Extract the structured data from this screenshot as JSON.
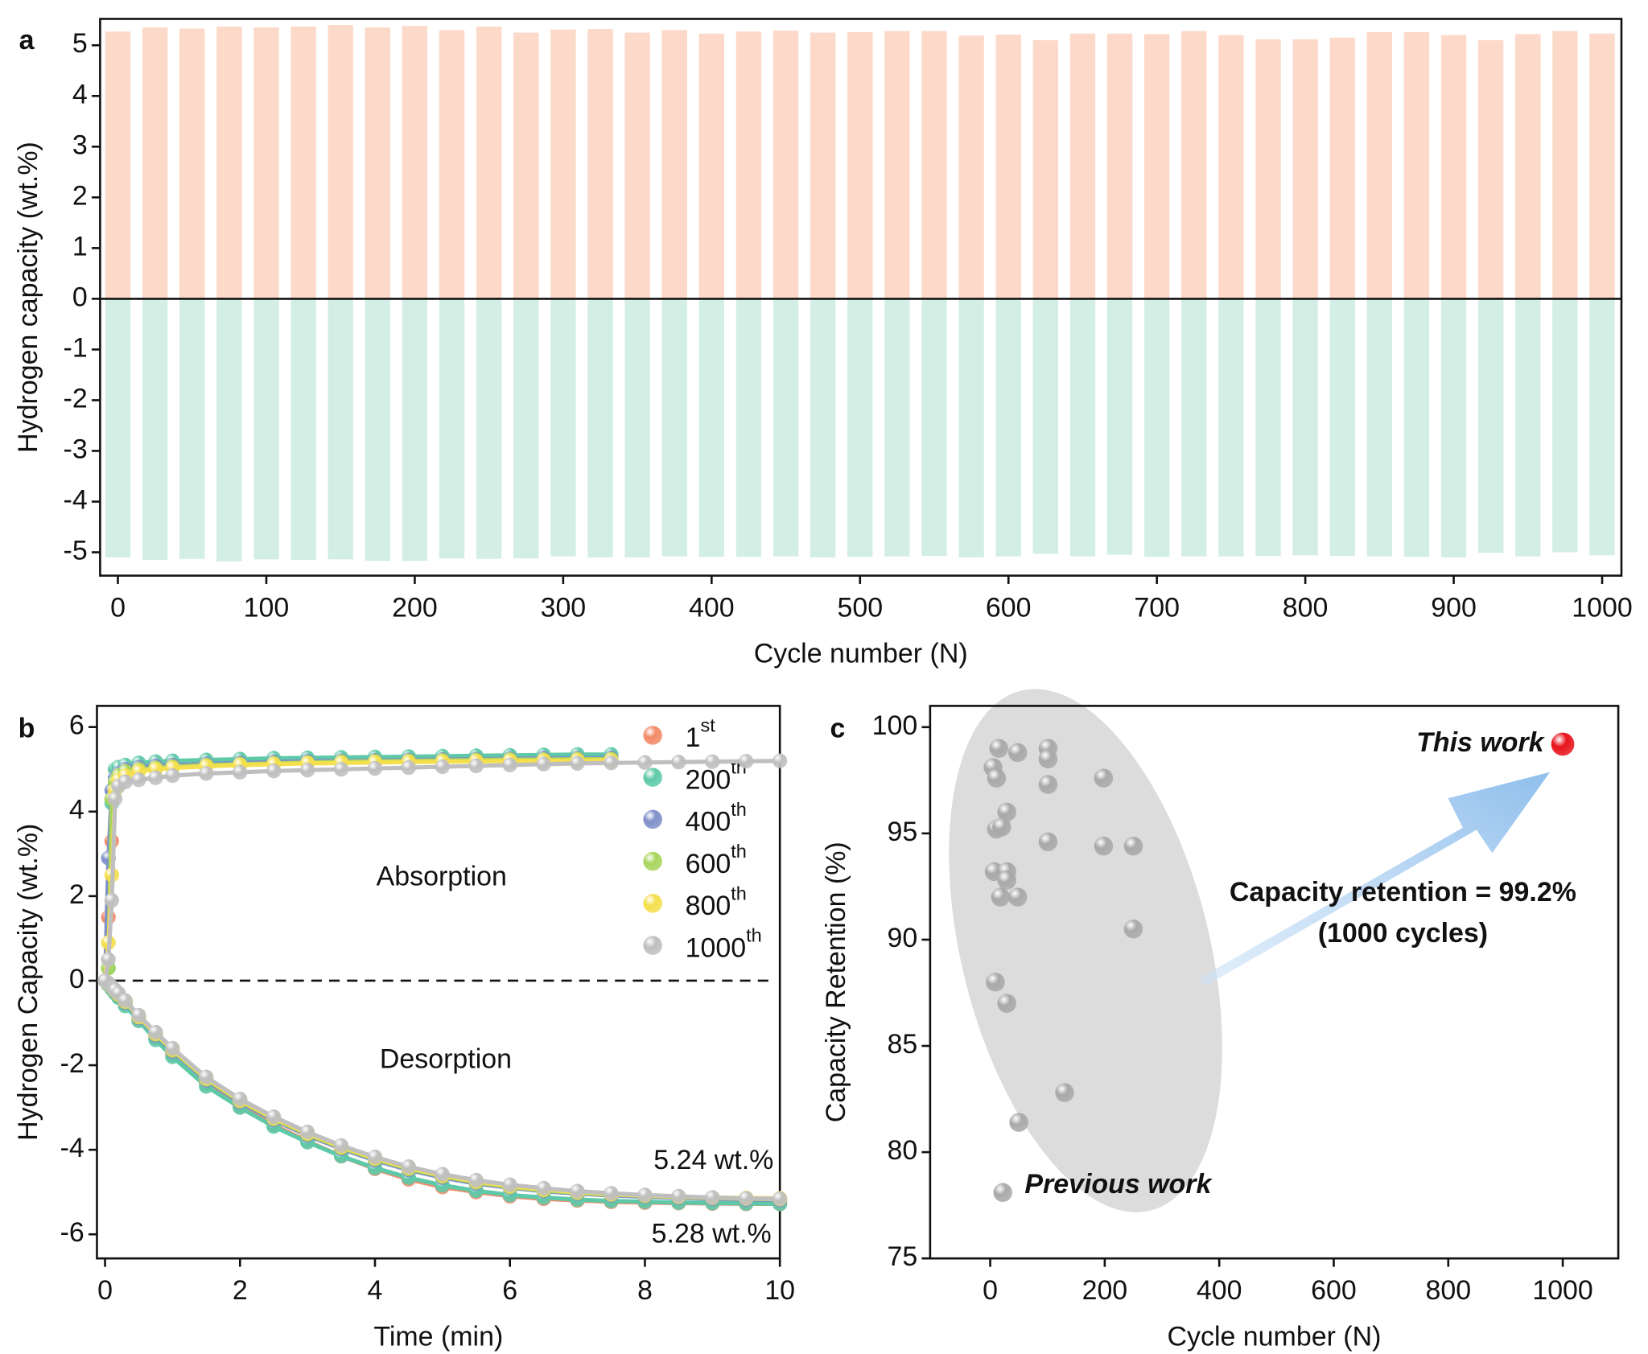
{
  "chart_data": [
    {
      "type": "bar",
      "panel": "a",
      "xlabel": "Cycle number (N)",
      "ylabel": "Hydrogen capacity (wt.%)",
      "x": [
        0,
        25,
        50,
        75,
        100,
        125,
        150,
        175,
        200,
        225,
        250,
        275,
        300,
        325,
        350,
        375,
        400,
        425,
        450,
        475,
        500,
        525,
        550,
        575,
        600,
        625,
        650,
        675,
        700,
        725,
        750,
        775,
        800,
        825,
        850,
        875,
        900,
        925,
        950,
        975,
        1000
      ],
      "series": [
        {
          "color": "#fcd9c8",
          "values": [
            5.27,
            5.35,
            5.33,
            5.37,
            5.35,
            5.37,
            5.4,
            5.35,
            5.38,
            5.3,
            5.37,
            5.25,
            5.31,
            5.32,
            5.25,
            5.3,
            5.23,
            5.27,
            5.29,
            5.25,
            5.26,
            5.28,
            5.28,
            5.19,
            5.21,
            5.1,
            5.23,
            5.23,
            5.22,
            5.28,
            5.2,
            5.12,
            5.12,
            5.15,
            5.26,
            5.26,
            5.2,
            5.1,
            5.22,
            5.28,
            5.23
          ]
        },
        {
          "color": "#d3eee4",
          "values": [
            -5.1,
            -5.15,
            -5.13,
            -5.18,
            -5.14,
            -5.15,
            -5.14,
            -5.17,
            -5.17,
            -5.12,
            -5.13,
            -5.12,
            -5.08,
            -5.1,
            -5.1,
            -5.08,
            -5.09,
            -5.09,
            -5.08,
            -5.1,
            -5.09,
            -5.08,
            -5.07,
            -5.1,
            -5.08,
            -5.03,
            -5.08,
            -5.05,
            -5.09,
            -5.08,
            -5.08,
            -5.07,
            -5.06,
            -5.07,
            -5.08,
            -5.09,
            -5.1,
            -5.01,
            -5.08,
            -5.0,
            -5.06
          ]
        }
      ],
      "xlim": [
        -12,
        1013
      ],
      "xticks": [
        0,
        100,
        200,
        300,
        400,
        500,
        600,
        700,
        800,
        900,
        1000
      ],
      "ylim": [
        -5.46,
        5.52
      ],
      "yticks": [
        -5,
        -4,
        -3,
        -2,
        -1,
        0,
        1,
        2,
        3,
        4,
        5
      ]
    },
    {
      "type": "line",
      "panel": "b",
      "xlabel": "Time (min)",
      "ylabel": "Hydrogen Capacity (wt.%)",
      "x": [
        0,
        0.05,
        0.1,
        0.15,
        0.2,
        0.3,
        0.5,
        0.75,
        1,
        1.5,
        2,
        2.5,
        3,
        3.5,
        4,
        4.5,
        5,
        5.5,
        6,
        6.5,
        7,
        7.5,
        8,
        8.5,
        9,
        9.5,
        10
      ],
      "series": [
        {
          "name": "1st",
          "color": "#f28a68",
          "absorption": [
            0,
            1.5,
            3.3,
            4.6,
            4.85,
            4.95,
            5.0,
            5.05,
            5.08,
            5.12,
            5.15,
            5.17,
            5.19,
            5.21,
            5.22,
            5.23,
            5.24,
            5.25,
            5.26,
            5.27,
            5.28,
            5.28,
            null,
            null,
            null,
            null,
            null
          ],
          "desorption": [
            0,
            -0.08,
            -0.18,
            -0.28,
            -0.38,
            -0.56,
            -0.92,
            -1.35,
            -1.75,
            -2.45,
            -2.98,
            -3.42,
            -3.8,
            -4.15,
            -4.45,
            -4.7,
            -4.88,
            -5.0,
            -5.1,
            -5.16,
            -5.2,
            -5.23,
            -5.25,
            -5.26,
            -5.27,
            -5.28,
            -5.28
          ]
        },
        {
          "name": "200th",
          "color": "#5ec9a8",
          "absorption": [
            0,
            0.3,
            4.2,
            5.0,
            5.05,
            5.1,
            5.15,
            5.18,
            5.2,
            5.22,
            5.24,
            5.26,
            5.27,
            5.28,
            5.29,
            5.3,
            5.31,
            5.32,
            5.33,
            5.34,
            5.35,
            5.35,
            null,
            null,
            null,
            null,
            null
          ],
          "desorption": [
            0,
            -0.1,
            -0.2,
            -0.3,
            -0.4,
            -0.6,
            -0.95,
            -1.4,
            -1.8,
            -2.5,
            -3.0,
            -3.45,
            -3.82,
            -4.15,
            -4.43,
            -4.66,
            -4.84,
            -4.97,
            -5.07,
            -5.13,
            -5.18,
            -5.21,
            -5.23,
            -5.25,
            -5.26,
            -5.27,
            -5.28
          ]
        },
        {
          "name": "400th",
          "color": "#7f8fc9",
          "absorption": [
            0,
            2.9,
            4.5,
            4.8,
            4.9,
            5.0,
            5.05,
            5.08,
            5.1,
            5.13,
            5.15,
            5.17,
            5.19,
            5.2,
            5.21,
            5.22,
            5.23,
            5.24,
            5.25,
            5.26,
            5.26,
            5.27,
            null,
            null,
            null,
            null,
            null
          ],
          "desorption": [
            0,
            -0.08,
            -0.16,
            -0.25,
            -0.34,
            -0.52,
            -0.88,
            -1.3,
            -1.68,
            -2.36,
            -2.88,
            -3.3,
            -3.66,
            -3.98,
            -4.25,
            -4.48,
            -4.66,
            -4.8,
            -4.9,
            -4.98,
            -5.04,
            -5.08,
            -5.11,
            -5.14,
            -5.16,
            -5.18,
            -5.19
          ]
        },
        {
          "name": "600th",
          "color": "#a8d65c",
          "absorption": [
            0,
            0.3,
            4.3,
            4.7,
            4.85,
            4.95,
            5.0,
            5.03,
            5.06,
            5.1,
            5.12,
            5.14,
            5.16,
            5.18,
            5.19,
            5.2,
            5.21,
            5.22,
            5.23,
            5.23,
            5.24,
            5.24,
            null,
            null,
            null,
            null,
            null
          ],
          "desorption": [
            0,
            -0.07,
            -0.15,
            -0.24,
            -0.33,
            -0.5,
            -0.86,
            -1.27,
            -1.65,
            -2.33,
            -2.85,
            -3.27,
            -3.63,
            -3.95,
            -4.22,
            -4.45,
            -4.63,
            -4.77,
            -4.88,
            -4.96,
            -5.02,
            -5.06,
            -5.09,
            -5.12,
            -5.14,
            -5.16,
            -5.17
          ]
        },
        {
          "name": "800th",
          "color": "#f4df4c",
          "absorption": [
            0,
            0.9,
            2.5,
            4.5,
            4.75,
            4.85,
            4.95,
            5.0,
            5.03,
            5.07,
            5.1,
            5.12,
            5.14,
            5.15,
            5.16,
            5.17,
            5.18,
            5.19,
            5.2,
            5.2,
            5.21,
            5.21,
            null,
            null,
            null,
            null,
            null
          ],
          "desorption": [
            0,
            -0.07,
            -0.15,
            -0.23,
            -0.32,
            -0.49,
            -0.85,
            -1.25,
            -1.63,
            -2.31,
            -2.83,
            -3.25,
            -3.61,
            -3.93,
            -4.2,
            -4.43,
            -4.61,
            -4.75,
            -4.86,
            -4.94,
            -5.0,
            -5.05,
            -5.08,
            -5.11,
            -5.13,
            -5.14,
            -5.15
          ]
        },
        {
          "name": "1000th",
          "color": "#bfbfbf",
          "absorption": [
            0,
            0.5,
            1.9,
            4.3,
            4.6,
            4.7,
            4.75,
            4.8,
            4.85,
            4.9,
            4.93,
            4.96,
            4.98,
            5.0,
            5.02,
            5.04,
            5.06,
            5.08,
            5.1,
            5.12,
            5.14,
            5.15,
            5.16,
            5.17,
            5.18,
            5.19,
            5.2
          ],
          "desorption": [
            0,
            -0.06,
            -0.14,
            -0.22,
            -0.3,
            -0.47,
            -0.82,
            -1.22,
            -1.6,
            -2.28,
            -2.8,
            -3.22,
            -3.58,
            -3.9,
            -4.17,
            -4.4,
            -4.58,
            -4.72,
            -4.83,
            -4.91,
            -4.98,
            -5.03,
            -5.07,
            -5.1,
            -5.13,
            -5.15,
            -5.16
          ]
        }
      ],
      "annotations": [
        "Absorption",
        "Desorption",
        "5.24 wt.%",
        "5.28 wt.%"
      ],
      "xlim": [
        -0.12,
        10
      ],
      "xticks": [
        0,
        2,
        4,
        6,
        8,
        10
      ],
      "ylim": [
        -6.57,
        6.5
      ],
      "yticks": [
        -6,
        -4,
        -2,
        0,
        2,
        4,
        6
      ]
    },
    {
      "type": "scatter",
      "panel": "c",
      "xlabel": "Cycle number (N)",
      "ylabel": "Capacity Retention (%)",
      "series": [
        {
          "name": "Previous work",
          "color": "#a9a9a9",
          "x": [
            15,
            48,
            101,
            101,
            5,
            11,
            29,
            101,
            198,
            11,
            20,
            101,
            198,
            250,
            7,
            29,
            29,
            18,
            48,
            250,
            9,
            29,
            130,
            50,
            22
          ],
          "values": [
            99.0,
            98.8,
            99.0,
            98.5,
            98.1,
            97.6,
            96.0,
            97.3,
            97.6,
            95.2,
            95.3,
            94.6,
            94.4,
            94.4,
            93.2,
            93.2,
            92.8,
            92.0,
            92.0,
            90.5,
            88.0,
            87.0,
            82.8,
            81.4,
            78.1
          ]
        },
        {
          "name": "This work",
          "color": "#e8131b",
          "x": [
            1000
          ],
          "values": [
            99.2
          ]
        }
      ],
      "annotations": [
        "Capacity retention = 99.2%",
        "(1000 cycles)"
      ],
      "xlim": [
        -105,
        1097
      ],
      "xticks": [
        0,
        200,
        400,
        600,
        800,
        1000
      ],
      "ylim": [
        75,
        101
      ],
      "yticks": [
        75,
        80,
        85,
        90,
        95,
        100
      ]
    }
  ]
}
